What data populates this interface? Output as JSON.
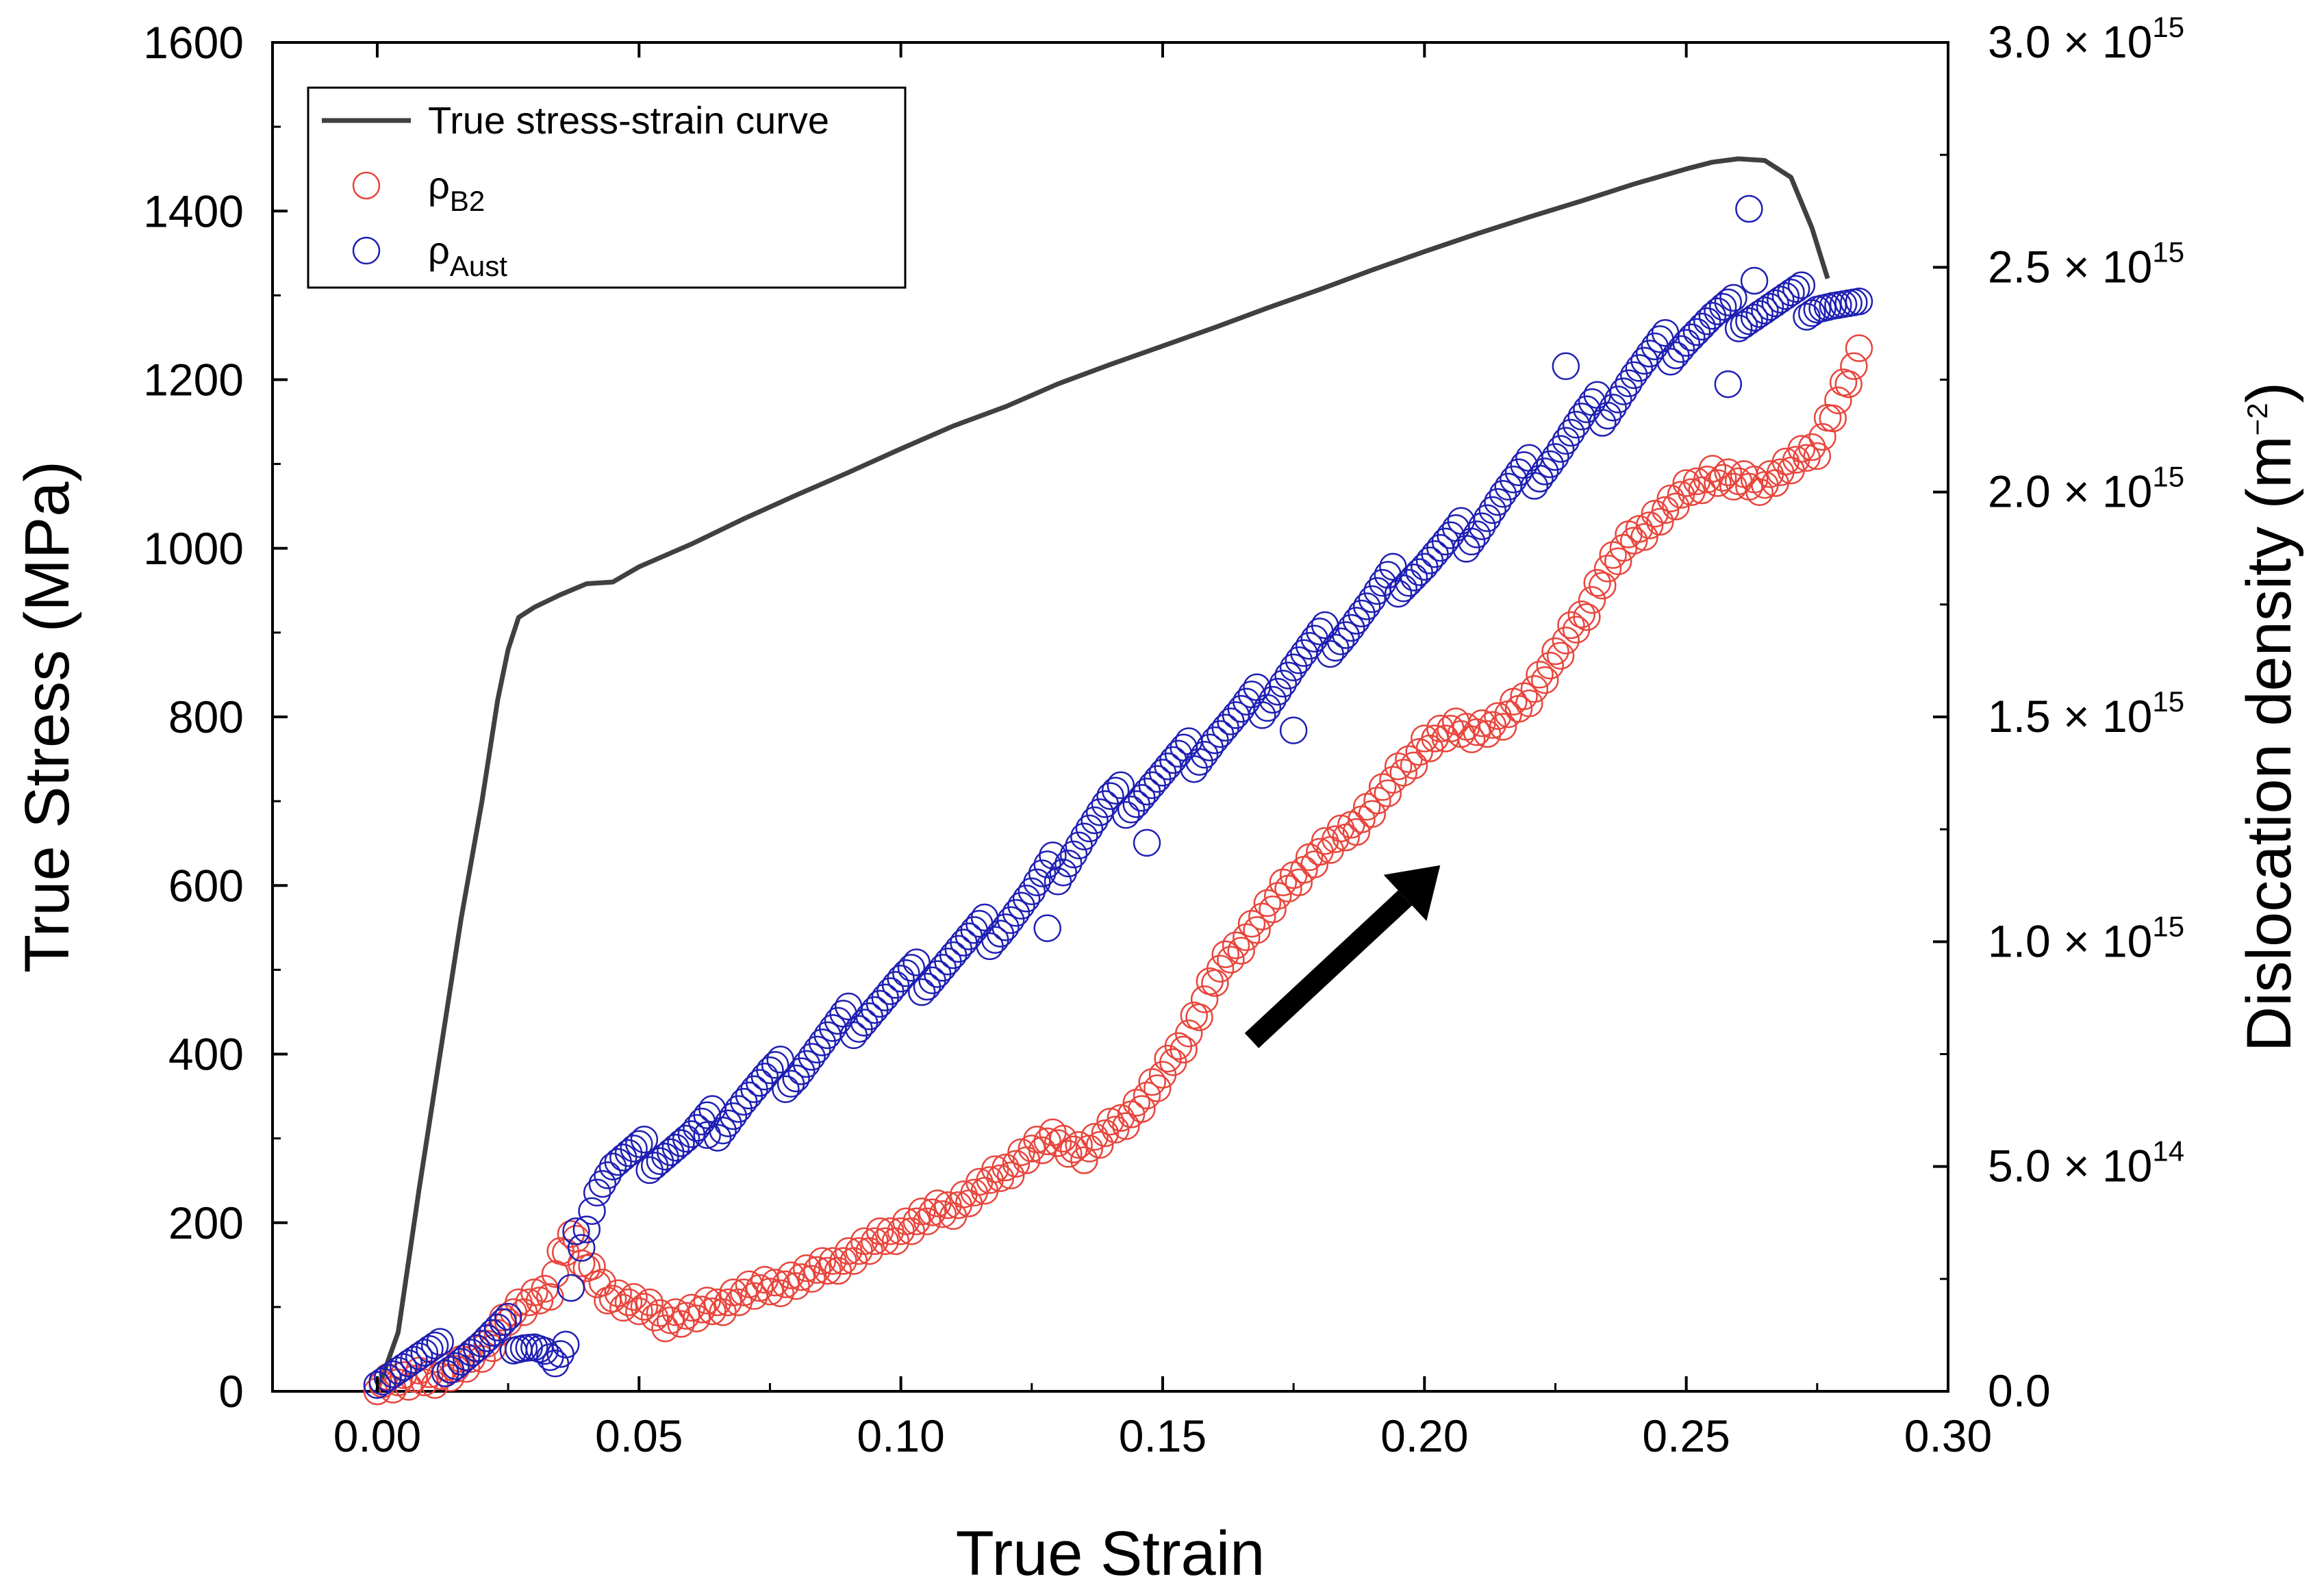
{
  "chart_data": {
    "type": "scatter",
    "title": "",
    "xlabel": "True Strain",
    "ylabel_left": "True Stress (MPa)",
    "ylabel_right": "Dislocation density (m",
    "ylabel_right_exp": "−2",
    "ylabel_right_close": ")",
    "xlim": [
      -0.02,
      0.3
    ],
    "ylim_left": [
      0,
      1600
    ],
    "ylim_right": [
      0,
      3000000000000000.0
    ],
    "x_ticks": [
      "0.00",
      "0.05",
      "0.10",
      "0.15",
      "0.20",
      "0.25",
      "0.30"
    ],
    "y_ticks_left": [
      "0",
      "200",
      "400",
      "600",
      "800",
      "1000",
      "1200",
      "1400",
      "1600"
    ],
    "y_ticks_right": [
      {
        "mantissa": "0.0",
        "exp": ""
      },
      {
        "mantissa": "5.0 × 10",
        "exp": "14"
      },
      {
        "mantissa": "1.0 × 10",
        "exp": "15"
      },
      {
        "mantissa": "1.5 × 10",
        "exp": "15"
      },
      {
        "mantissa": "2.0 × 10",
        "exp": "15"
      },
      {
        "mantissa": "2.5 × 10",
        "exp": "15"
      },
      {
        "mantissa": "3.0 × 10",
        "exp": "15"
      }
    ],
    "legend": [
      {
        "label": "True stress-strain curve",
        "sub": "",
        "kind": "line",
        "color": "#404040"
      },
      {
        "label": "ρ",
        "sub": "B2",
        "kind": "circle",
        "color": "#e8453c"
      },
      {
        "label": "ρ",
        "sub": "Aust",
        "kind": "circle",
        "color": "#1f1fb4"
      }
    ],
    "annotation": "arrow pointing upward-right",
    "series": [
      {
        "name": "True stress-strain curve",
        "axis": "left",
        "color": "#404040",
        "points": [
          [
            0.0,
            0
          ],
          [
            0.004,
            70
          ],
          [
            0.008,
            240
          ],
          [
            0.012,
            400
          ],
          [
            0.016,
            560
          ],
          [
            0.02,
            700
          ],
          [
            0.023,
            820
          ],
          [
            0.025,
            880
          ],
          [
            0.027,
            918
          ],
          [
            0.03,
            930
          ],
          [
            0.035,
            945
          ],
          [
            0.04,
            958
          ],
          [
            0.045,
            960
          ],
          [
            0.05,
            978
          ],
          [
            0.06,
            1005
          ],
          [
            0.07,
            1035
          ],
          [
            0.08,
            1063
          ],
          [
            0.09,
            1090
          ],
          [
            0.1,
            1118
          ],
          [
            0.11,
            1145
          ],
          [
            0.12,
            1168
          ],
          [
            0.13,
            1195
          ],
          [
            0.14,
            1218
          ],
          [
            0.15,
            1240
          ],
          [
            0.16,
            1262
          ],
          [
            0.17,
            1285
          ],
          [
            0.18,
            1307
          ],
          [
            0.19,
            1330
          ],
          [
            0.2,
            1352
          ],
          [
            0.21,
            1373
          ],
          [
            0.22,
            1393
          ],
          [
            0.23,
            1412
          ],
          [
            0.24,
            1432
          ],
          [
            0.25,
            1450
          ],
          [
            0.255,
            1458
          ],
          [
            0.26,
            1462
          ],
          [
            0.265,
            1460
          ],
          [
            0.27,
            1440
          ],
          [
            0.274,
            1380
          ],
          [
            0.277,
            1320
          ]
        ]
      },
      {
        "name": "ρB2",
        "axis": "right",
        "color": "#e8453c",
        "points": [
          [
            0.0,
            20000000000000.0
          ],
          [
            0.005,
            20000000000000.0
          ],
          [
            0.01,
            30000000000000.0
          ],
          [
            0.015,
            50000000000000.0
          ],
          [
            0.02,
            80000000000000.0
          ],
          [
            0.025,
            170000000000000.0
          ],
          [
            0.03,
            200000000000000.0
          ],
          [
            0.033,
            230000000000000.0
          ],
          [
            0.035,
            300000000000000.0
          ],
          [
            0.037,
            350000000000000.0
          ],
          [
            0.04,
            270000000000000.0
          ],
          [
            0.045,
            210000000000000.0
          ],
          [
            0.05,
            190000000000000.0
          ],
          [
            0.055,
            160000000000000.0
          ],
          [
            0.06,
            170000000000000.0
          ],
          [
            0.065,
            190000000000000.0
          ],
          [
            0.07,
            220000000000000.0
          ],
          [
            0.075,
            230000000000000.0
          ],
          [
            0.08,
            250000000000000.0
          ],
          [
            0.085,
            270000000000000.0
          ],
          [
            0.09,
            300000000000000.0
          ],
          [
            0.095,
            330000000000000.0
          ],
          [
            0.1,
            360000000000000.0
          ],
          [
            0.105,
            390000000000000.0
          ],
          [
            0.11,
            410000000000000.0
          ],
          [
            0.115,
            450000000000000.0
          ],
          [
            0.12,
            490000000000000.0
          ],
          [
            0.125,
            540000000000000.0
          ],
          [
            0.13,
            560000000000000.0
          ],
          [
            0.135,
            530000000000000.0
          ],
          [
            0.14,
            580000000000000.0
          ],
          [
            0.145,
            630000000000000.0
          ],
          [
            0.15,
            700000000000000.0
          ],
          [
            0.155,
            800000000000000.0
          ],
          [
            0.16,
            920000000000000.0
          ],
          [
            0.165,
            1000000000000000.0
          ],
          [
            0.17,
            1070000000000000.0
          ],
          [
            0.175,
            1140000000000000.0
          ],
          [
            0.18,
            1200000000000000.0
          ],
          [
            0.185,
            1240000000000000.0
          ],
          [
            0.19,
            1300000000000000.0
          ],
          [
            0.195,
            1370000000000000.0
          ],
          [
            0.2,
            1440000000000000.0
          ],
          [
            0.205,
            1470000000000000.0
          ],
          [
            0.21,
            1470000000000000.0
          ],
          [
            0.215,
            1490000000000000.0
          ],
          [
            0.22,
            1550000000000000.0
          ],
          [
            0.225,
            1630000000000000.0
          ],
          [
            0.23,
            1720000000000000.0
          ],
          [
            0.235,
            1830000000000000.0
          ],
          [
            0.24,
            1900000000000000.0
          ],
          [
            0.245,
            1950000000000000.0
          ],
          [
            0.25,
            2000000000000000.0
          ],
          [
            0.255,
            2040000000000000.0
          ],
          [
            0.26,
            2020000000000000.0
          ],
          [
            0.265,
            2020000000000000.0
          ],
          [
            0.27,
            2060000000000000.0
          ],
          [
            0.275,
            2100000000000000.0
          ],
          [
            0.278,
            2180000000000000.0
          ],
          [
            0.283,
            2300000000000000.0
          ]
        ]
      },
      {
        "name": "ρAust",
        "axis": "right",
        "color": "#1f1fb4",
        "points": [
          [
            0.0,
            50000000000000.0
          ],
          [
            0.005,
            60000000000000.0
          ],
          [
            0.01,
            70000000000000.0
          ],
          [
            0.015,
            80000000000000.0
          ],
          [
            0.02,
            100000000000000.0
          ],
          [
            0.025,
            130000000000000.0
          ],
          [
            0.028,
            120000000000000.0
          ],
          [
            0.03,
            110000000000000.0
          ],
          [
            0.032,
            90000000000000.0
          ],
          [
            0.034,
            50000000000000.0
          ],
          [
            0.036,
            80000000000000.0
          ],
          [
            0.037,
            200000000000000.0
          ],
          [
            0.038,
            320000000000000.0
          ],
          [
            0.04,
            390000000000000.0
          ],
          [
            0.042,
            460000000000000.0
          ],
          [
            0.045,
            500000000000000.0
          ],
          [
            0.05,
            520000000000000.0
          ],
          [
            0.055,
            540000000000000.0
          ],
          [
            0.06,
            560000000000000.0
          ],
          [
            0.065,
            600000000000000.0
          ],
          [
            0.07,
            650000000000000.0
          ],
          [
            0.075,
            690000000000000.0
          ],
          [
            0.08,
            720000000000000.0
          ],
          [
            0.085,
            770000000000000.0
          ],
          [
            0.09,
            820000000000000.0
          ],
          [
            0.095,
            860000000000000.0
          ],
          [
            0.1,
            900000000000000.0
          ],
          [
            0.105,
            930000000000000.0
          ],
          [
            0.11,
            970000000000000.0
          ],
          [
            0.115,
            1010000000000000.0
          ],
          [
            0.12,
            1050000000000000.0
          ],
          [
            0.125,
            1100000000000000.0
          ],
          [
            0.13,
            1170000000000000.0
          ],
          [
            0.135,
            1240000000000000.0
          ],
          [
            0.14,
            1300000000000000.0
          ],
          [
            0.145,
            1330000000000000.0
          ],
          [
            0.15,
            1370000000000000.0
          ],
          [
            0.155,
            1410000000000000.0
          ],
          [
            0.16,
            1460000000000000.0
          ],
          [
            0.165,
            1500000000000000.0
          ],
          [
            0.17,
            1550000000000000.0
          ],
          [
            0.175,
            1610000000000000.0
          ],
          [
            0.18,
            1660000000000000.0
          ],
          [
            0.185,
            1700000000000000.0
          ],
          [
            0.19,
            1750000000000000.0
          ],
          [
            0.195,
            1810000000000000.0
          ],
          [
            0.2,
            1840000000000000.0
          ],
          [
            0.205,
            1880000000000000.0
          ],
          [
            0.21,
            1930000000000000.0
          ],
          [
            0.215,
            1990000000000000.0
          ],
          [
            0.22,
            2040000000000000.0
          ],
          [
            0.225,
            2090000000000000.0
          ],
          [
            0.23,
            2150000000000000.0
          ],
          [
            0.235,
            2200000000000000.0
          ],
          [
            0.24,
            2260000000000000.0
          ],
          [
            0.245,
            2310000000000000.0
          ],
          [
            0.25,
            2350000000000000.0
          ],
          [
            0.255,
            2380000000000000.0
          ],
          [
            0.26,
            2400000000000000.0
          ],
          [
            0.265,
            2410000000000000.0
          ],
          [
            0.27,
            2420000000000000.0
          ],
          [
            0.275,
            2430000000000000.0
          ],
          [
            0.278,
            2420000000000000.0
          ],
          [
            0.283,
            2400000000000000.0
          ]
        ]
      }
    ],
    "outliers_aust": [
      [
        0.063,
        570000000000000.0
      ],
      [
        0.128,
        1030000000000000.0
      ],
      [
        0.147,
        1220000000000000.0
      ],
      [
        0.175,
        1470000000000000.0
      ],
      [
        0.227,
        2280000000000000.0
      ],
      [
        0.258,
        2240000000000000.0
      ],
      [
        0.262,
        2630000000000000.0
      ],
      [
        0.263,
        2470000000000000.0
      ]
    ]
  }
}
